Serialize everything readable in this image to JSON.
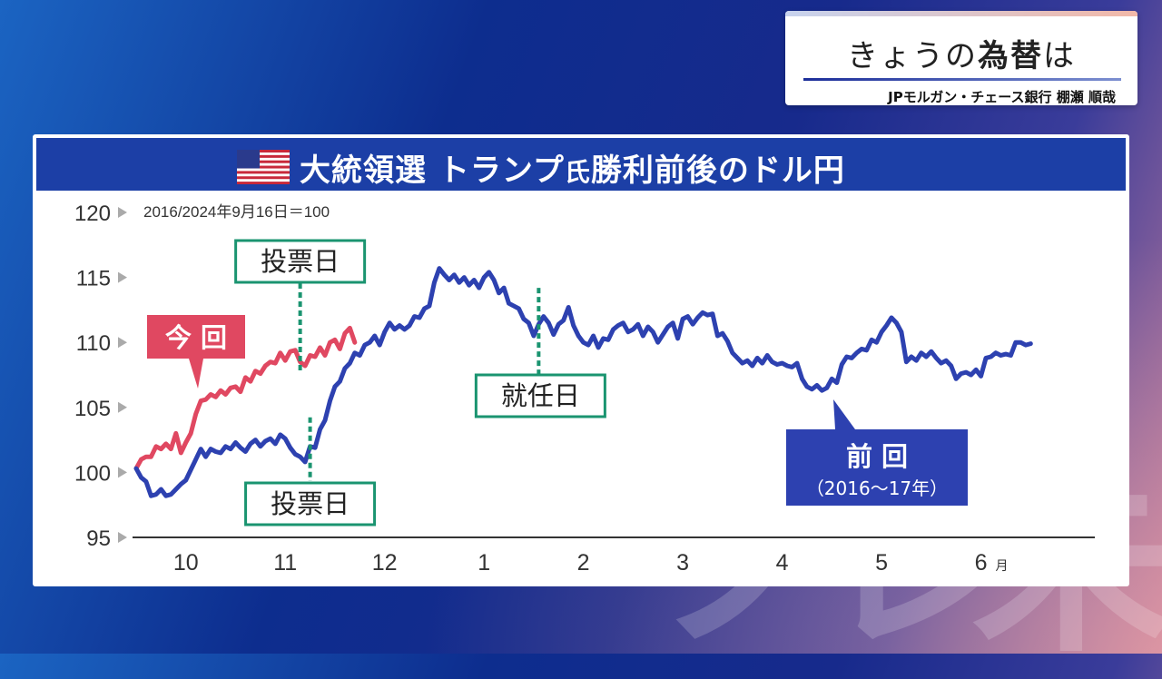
{
  "caption": {
    "title_pre": "きょうの",
    "title_bold": "為替",
    "title_post": "は",
    "subtitle": "JPモルガン・チェース銀行 棚瀬 順哉"
  },
  "panel": {
    "title_main": "大統領選 トランプ",
    "title_small": "氏",
    "title_rest": "勝利前後のドル円",
    "flag_icon": "us-flag-icon"
  },
  "colors": {
    "header": "#1c3fa6",
    "current": "#e04861",
    "previous": "#2d41b0",
    "marker": "#1a9470"
  },
  "chart_data": {
    "type": "line",
    "note": "2016/2024年9月16日＝100",
    "ylim": [
      95,
      120
    ],
    "yticks": [
      "95",
      "100",
      "105",
      "110",
      "115",
      "120"
    ],
    "xticks": [
      {
        "label": "10",
        "pos": 0.5
      },
      {
        "label": "11",
        "pos": 1.5
      },
      {
        "label": "12",
        "pos": 2.5
      },
      {
        "label": "1",
        "pos": 3.5
      },
      {
        "label": "2",
        "pos": 4.5
      },
      {
        "label": "3",
        "pos": 5.5
      },
      {
        "label": "4",
        "pos": 6.5
      },
      {
        "label": "5",
        "pos": 7.5
      },
      {
        "label": "6",
        "pos": 8.5,
        "suffix": "月"
      }
    ],
    "xlim": [
      0,
      9.5
    ],
    "series": [
      {
        "name": "今回",
        "color": "#e04861",
        "points": [
          [
            0,
            100.3
          ],
          [
            0.05,
            101.0
          ],
          [
            0.1,
            101.2
          ],
          [
            0.15,
            101.2
          ],
          [
            0.2,
            102.0
          ],
          [
            0.25,
            101.8
          ],
          [
            0.3,
            102.2
          ],
          [
            0.35,
            101.8
          ],
          [
            0.4,
            103.0
          ],
          [
            0.45,
            101.5
          ],
          [
            0.5,
            102.3
          ],
          [
            0.55,
            103.0
          ],
          [
            0.6,
            104.5
          ],
          [
            0.65,
            105.5
          ],
          [
            0.7,
            105.6
          ],
          [
            0.75,
            106.0
          ],
          [
            0.8,
            105.8
          ],
          [
            0.85,
            106.3
          ],
          [
            0.9,
            106.0
          ],
          [
            0.95,
            106.5
          ],
          [
            1.0,
            106.6
          ],
          [
            1.05,
            106.2
          ],
          [
            1.1,
            107.3
          ],
          [
            1.15,
            107.0
          ],
          [
            1.2,
            107.8
          ],
          [
            1.25,
            107.6
          ],
          [
            1.3,
            108.2
          ],
          [
            1.35,
            108.5
          ],
          [
            1.4,
            108.4
          ],
          [
            1.45,
            109.2
          ],
          [
            1.5,
            108.6
          ],
          [
            1.55,
            109.3
          ],
          [
            1.6,
            109.4
          ],
          [
            1.65,
            108.5
          ],
          [
            1.7,
            108.2
          ],
          [
            1.75,
            109.0
          ],
          [
            1.8,
            108.9
          ],
          [
            1.85,
            109.6
          ],
          [
            1.9,
            109.0
          ],
          [
            1.95,
            110.0
          ],
          [
            2.0,
            110.2
          ],
          [
            2.05,
            109.5
          ],
          [
            2.1,
            110.7
          ],
          [
            2.15,
            111.1
          ],
          [
            2.2,
            110.0
          ]
        ]
      },
      {
        "name": "前回（2016〜17年）",
        "color": "#2d41b0",
        "points": [
          [
            0,
            100.3
          ],
          [
            0.05,
            99.6
          ],
          [
            0.1,
            99.3
          ],
          [
            0.15,
            98.2
          ],
          [
            0.2,
            98.3
          ],
          [
            0.25,
            98.7
          ],
          [
            0.3,
            98.2
          ],
          [
            0.35,
            98.3
          ],
          [
            0.4,
            98.7
          ],
          [
            0.45,
            99.1
          ],
          [
            0.5,
            99.4
          ],
          [
            0.55,
            100.2
          ],
          [
            0.6,
            101.0
          ],
          [
            0.65,
            101.8
          ],
          [
            0.7,
            101.2
          ],
          [
            0.75,
            101.8
          ],
          [
            0.8,
            101.6
          ],
          [
            0.85,
            101.5
          ],
          [
            0.9,
            102.0
          ],
          [
            0.95,
            101.8
          ],
          [
            1.0,
            102.3
          ],
          [
            1.05,
            101.9
          ],
          [
            1.1,
            101.6
          ],
          [
            1.15,
            102.2
          ],
          [
            1.2,
            102.5
          ],
          [
            1.25,
            102.0
          ],
          [
            1.3,
            102.4
          ],
          [
            1.35,
            102.6
          ],
          [
            1.4,
            102.2
          ],
          [
            1.45,
            102.9
          ],
          [
            1.5,
            102.6
          ],
          [
            1.55,
            101.9
          ],
          [
            1.6,
            101.4
          ],
          [
            1.65,
            101.2
          ],
          [
            1.7,
            100.8
          ],
          [
            1.75,
            102.0
          ],
          [
            1.8,
            101.9
          ],
          [
            1.85,
            103.3
          ],
          [
            1.9,
            104.0
          ],
          [
            1.95,
            105.5
          ],
          [
            2.0,
            106.6
          ],
          [
            2.05,
            107.0
          ],
          [
            2.1,
            108.0
          ],
          [
            2.15,
            108.4
          ],
          [
            2.2,
            109.2
          ],
          [
            2.25,
            109.0
          ],
          [
            2.3,
            109.8
          ],
          [
            2.35,
            110.0
          ],
          [
            2.4,
            110.5
          ],
          [
            2.45,
            109.8
          ],
          [
            2.5,
            110.8
          ],
          [
            2.55,
            111.5
          ],
          [
            2.6,
            111.0
          ],
          [
            2.65,
            111.3
          ],
          [
            2.7,
            111.0
          ],
          [
            2.75,
            111.3
          ],
          [
            2.8,
            112.0
          ],
          [
            2.85,
            111.9
          ],
          [
            2.9,
            112.6
          ],
          [
            2.95,
            112.8
          ],
          [
            3.0,
            114.6
          ],
          [
            3.05,
            115.7
          ],
          [
            3.1,
            115.2
          ],
          [
            3.15,
            114.8
          ],
          [
            3.2,
            115.2
          ],
          [
            3.25,
            114.6
          ],
          [
            3.3,
            115.0
          ],
          [
            3.35,
            114.4
          ],
          [
            3.4,
            114.8
          ],
          [
            3.45,
            114.2
          ],
          [
            3.5,
            115.0
          ],
          [
            3.55,
            115.4
          ],
          [
            3.6,
            114.8
          ],
          [
            3.65,
            113.8
          ],
          [
            3.7,
            114.2
          ],
          [
            3.75,
            113.0
          ],
          [
            3.8,
            112.8
          ],
          [
            3.85,
            112.6
          ],
          [
            3.9,
            111.8
          ],
          [
            3.95,
            111.5
          ],
          [
            4.0,
            110.5
          ],
          [
            4.05,
            111.4
          ],
          [
            4.1,
            112.0
          ],
          [
            4.15,
            111.5
          ],
          [
            4.2,
            110.6
          ],
          [
            4.25,
            111.4
          ],
          [
            4.3,
            111.7
          ],
          [
            4.35,
            112.7
          ],
          [
            4.4,
            111.3
          ],
          [
            4.45,
            110.5
          ],
          [
            4.5,
            110.0
          ],
          [
            4.55,
            109.8
          ],
          [
            4.6,
            110.5
          ],
          [
            4.65,
            109.6
          ],
          [
            4.7,
            110.3
          ],
          [
            4.75,
            110.2
          ],
          [
            4.8,
            111.0
          ],
          [
            4.85,
            111.3
          ],
          [
            4.9,
            111.5
          ],
          [
            4.95,
            110.8
          ],
          [
            5.0,
            111.0
          ],
          [
            5.05,
            111.4
          ],
          [
            5.1,
            110.5
          ],
          [
            5.15,
            111.2
          ],
          [
            5.2,
            110.8
          ],
          [
            5.25,
            110.0
          ],
          [
            5.3,
            110.6
          ],
          [
            5.35,
            111.2
          ],
          [
            5.4,
            111.5
          ],
          [
            5.45,
            110.3
          ],
          [
            5.5,
            111.8
          ],
          [
            5.55,
            112.0
          ],
          [
            5.6,
            111.4
          ],
          [
            5.65,
            111.9
          ],
          [
            5.7,
            112.3
          ],
          [
            5.75,
            112.1
          ],
          [
            5.8,
            112.2
          ],
          [
            5.85,
            110.5
          ],
          [
            5.9,
            110.7
          ],
          [
            5.95,
            110.1
          ],
          [
            6.0,
            109.2
          ],
          [
            6.05,
            108.8
          ],
          [
            6.1,
            108.4
          ],
          [
            6.15,
            108.6
          ],
          [
            6.2,
            108.2
          ],
          [
            6.25,
            108.8
          ],
          [
            6.3,
            108.4
          ],
          [
            6.35,
            109.0
          ],
          [
            6.4,
            108.5
          ],
          [
            6.45,
            108.3
          ],
          [
            6.5,
            108.4
          ],
          [
            6.55,
            108.2
          ],
          [
            6.6,
            108.1
          ],
          [
            6.65,
            108.4
          ],
          [
            6.7,
            107.2
          ],
          [
            6.75,
            106.6
          ],
          [
            6.8,
            106.4
          ],
          [
            6.85,
            106.7
          ],
          [
            6.9,
            106.3
          ],
          [
            6.95,
            106.5
          ],
          [
            7.0,
            107.2
          ],
          [
            7.05,
            106.9
          ],
          [
            7.1,
            108.3
          ],
          [
            7.15,
            108.9
          ],
          [
            7.2,
            108.8
          ],
          [
            7.25,
            109.2
          ],
          [
            7.3,
            109.5
          ],
          [
            7.35,
            109.4
          ],
          [
            7.4,
            110.2
          ],
          [
            7.45,
            110.0
          ],
          [
            7.5,
            110.8
          ],
          [
            7.55,
            111.3
          ],
          [
            7.6,
            111.9
          ],
          [
            7.65,
            111.5
          ],
          [
            7.7,
            110.8
          ],
          [
            7.75,
            108.5
          ],
          [
            7.8,
            108.9
          ],
          [
            7.85,
            108.6
          ],
          [
            7.9,
            109.2
          ],
          [
            7.95,
            108.9
          ],
          [
            8.0,
            109.3
          ],
          [
            8.05,
            108.8
          ],
          [
            8.1,
            108.4
          ],
          [
            8.15,
            108.6
          ],
          [
            8.2,
            108.2
          ],
          [
            8.25,
            107.2
          ],
          [
            8.3,
            107.6
          ],
          [
            8.35,
            107.7
          ],
          [
            8.4,
            107.5
          ],
          [
            8.45,
            107.9
          ],
          [
            8.5,
            107.4
          ],
          [
            8.55,
            108.8
          ],
          [
            8.6,
            108.9
          ],
          [
            8.65,
            109.2
          ],
          [
            8.7,
            109.0
          ],
          [
            8.75,
            109.1
          ],
          [
            8.8,
            109.0
          ],
          [
            8.85,
            110.0
          ],
          [
            8.9,
            110.0
          ],
          [
            8.95,
            109.8
          ],
          [
            9.0,
            109.9
          ]
        ]
      }
    ],
    "annotations": [
      {
        "text": "投票日",
        "series": "今回",
        "x": 1.65
      },
      {
        "text": "投票日",
        "series": "前回",
        "x": 1.75
      },
      {
        "text": "就任日",
        "series": "前回",
        "x": 4.05
      },
      {
        "text": "今 回",
        "series": "今回"
      },
      {
        "text": "前 回",
        "sub": "（2016〜17年）",
        "series": "前回"
      }
    ]
  }
}
